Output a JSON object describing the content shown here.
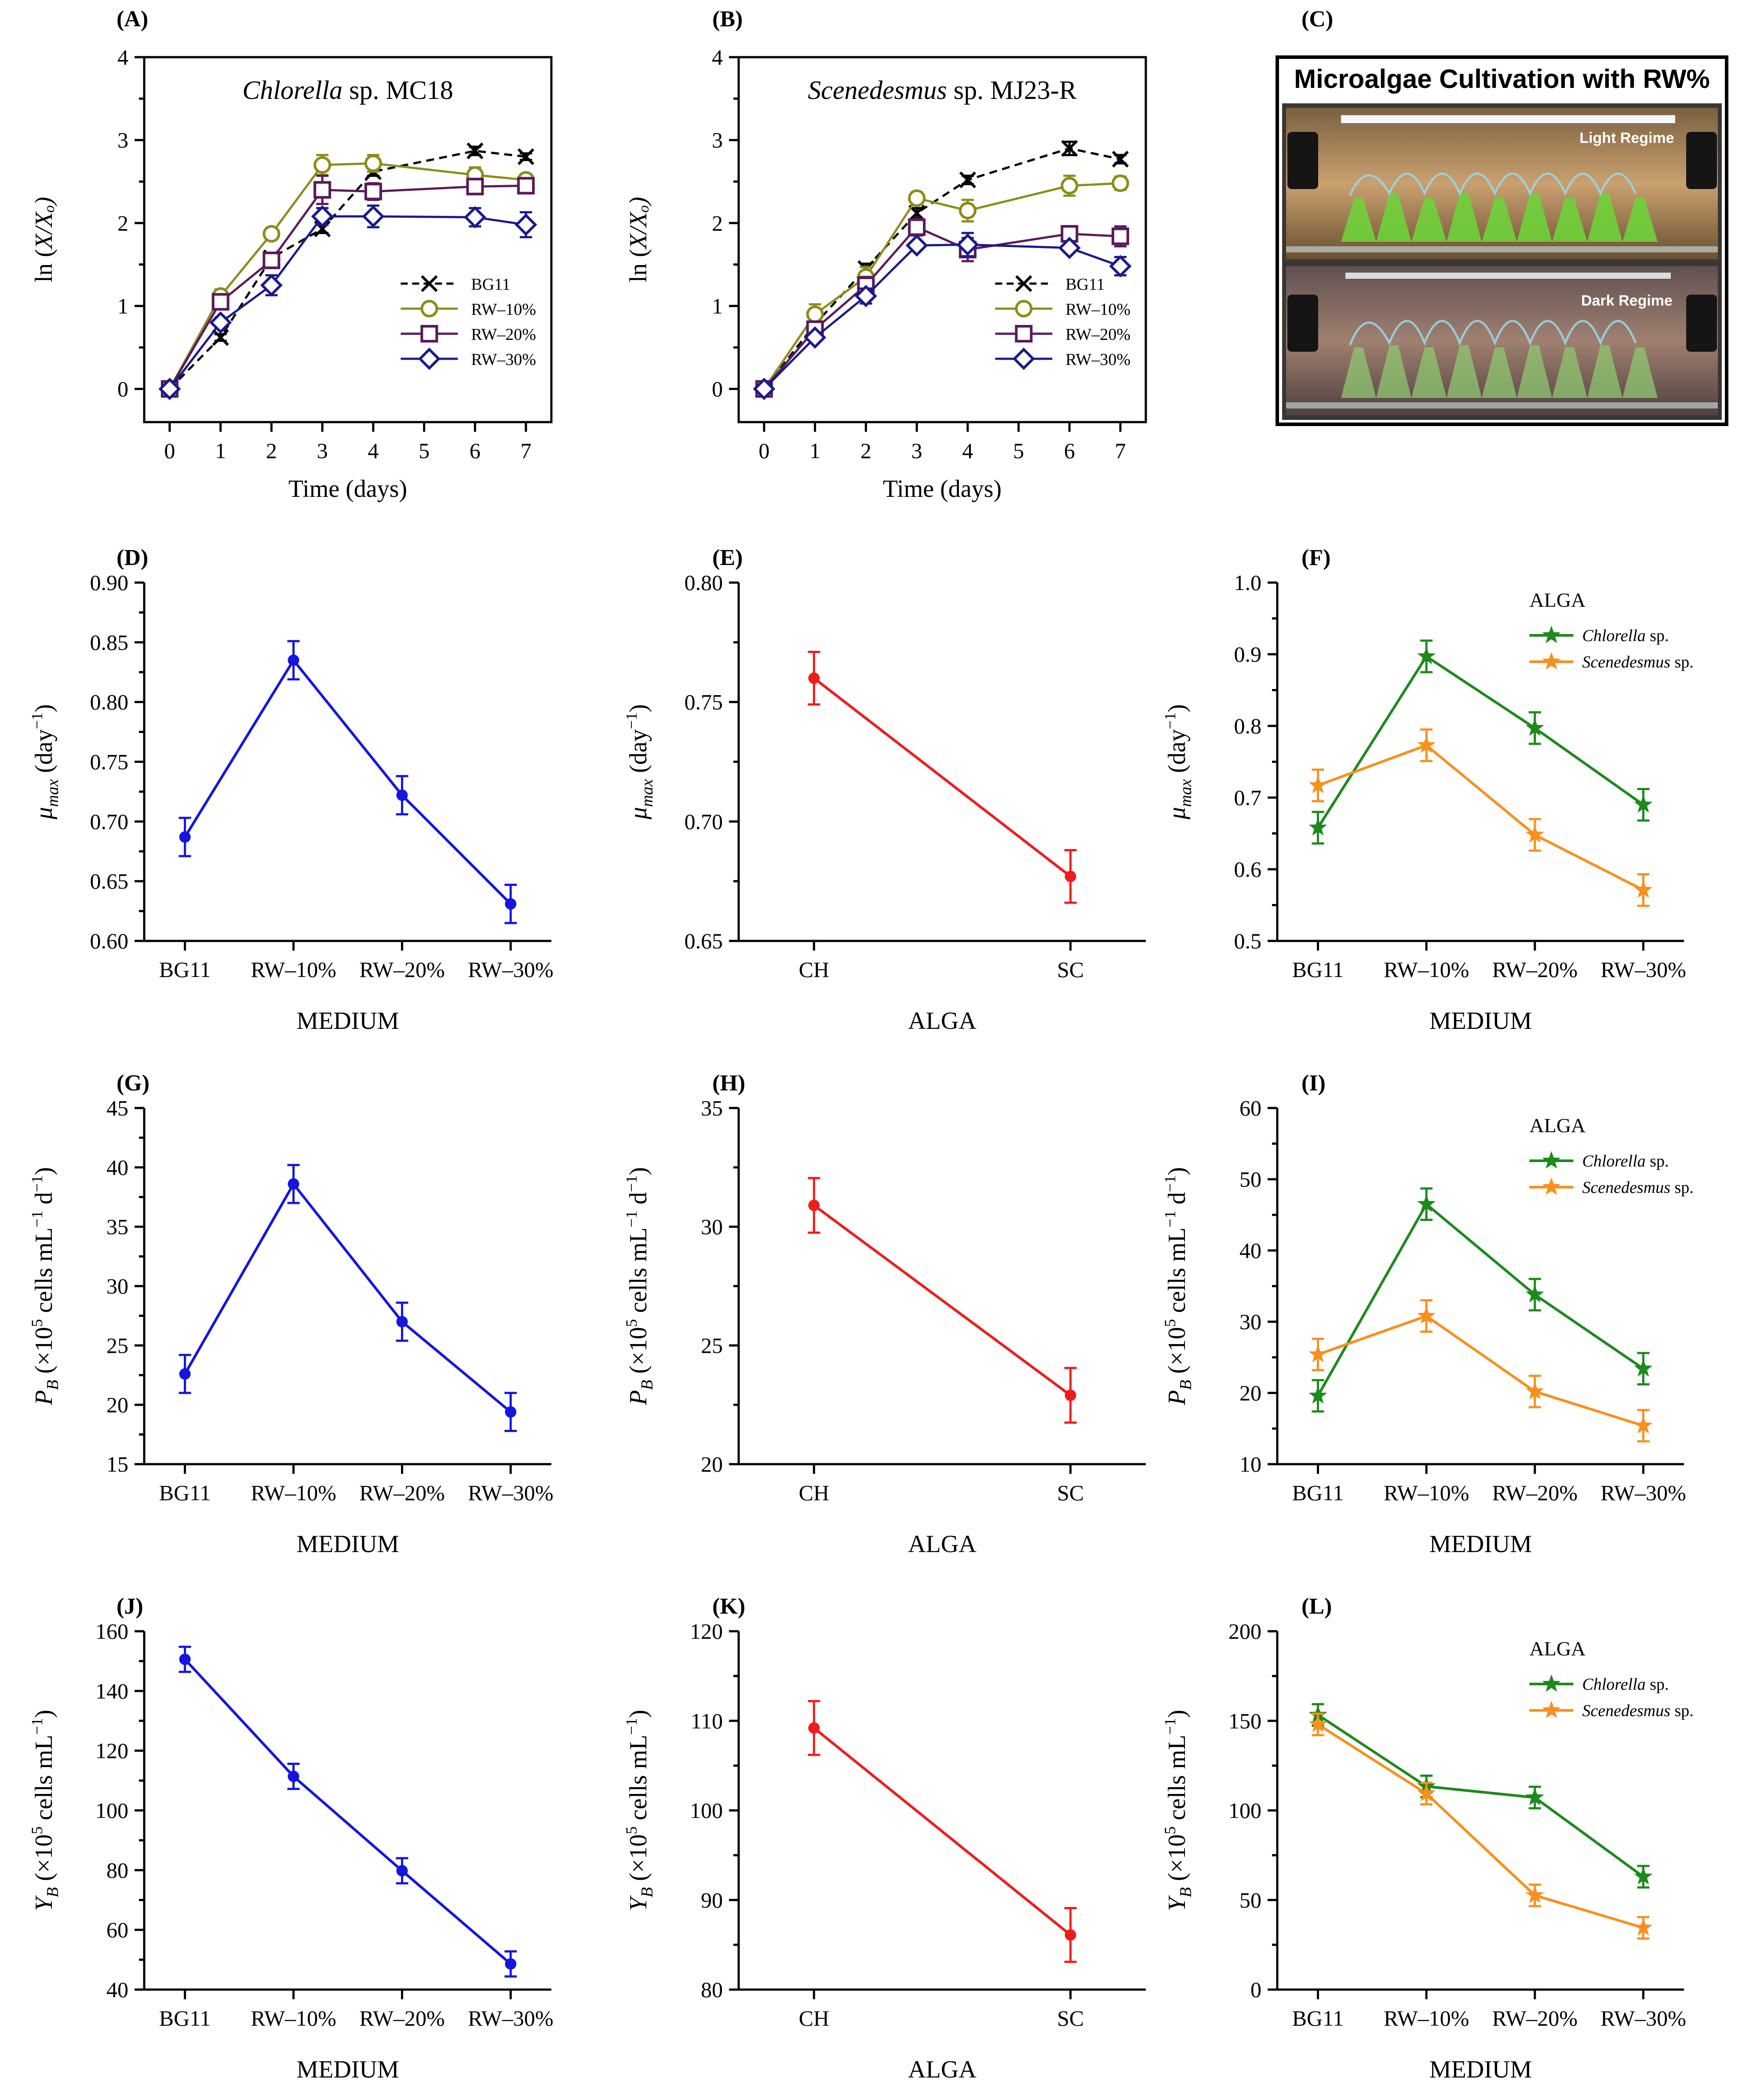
{
  "colors": {
    "blue": "#1515e0",
    "red": "#ee1c1c",
    "green": "#1c8a1c",
    "orange": "#f7901e",
    "olive": "#8c8c1a",
    "purple": "#5a1a5a",
    "navy": "#1a1a8c",
    "black": "#000000"
  },
  "panel_c": {
    "label": "(C)",
    "title": "Microalgae Cultivation with RW%",
    "light_label": "Light Regime",
    "dark_label": "Dark Regime"
  },
  "chart_data": [
    {
      "id": "A",
      "label": "(A)",
      "type": "line",
      "title": "Chlorella sp. MC18",
      "title_italic": "Chlorella",
      "title_rest": " sp. MC18",
      "xlabel": "Time (days)",
      "ylabel": "ln (X/Xₒ)",
      "x": [
        0,
        1,
        2,
        3,
        4,
        6,
        7
      ],
      "xticks": [
        "0",
        "1",
        "2",
        "3",
        "4",
        "5",
        "6",
        "7"
      ],
      "xlim": [
        -0.5,
        7.5
      ],
      "yticks": [
        "0",
        "1",
        "2",
        "3",
        "4"
      ],
      "ylim": [
        -0.4,
        4
      ],
      "legend": "bottom-right",
      "series": [
        {
          "name": "BG11",
          "values": [
            0,
            0.62,
            1.58,
            1.93,
            2.62,
            2.87,
            2.8
          ],
          "errors": [
            0,
            0.04,
            0.05,
            0.05,
            0.05,
            0.05,
            0.04
          ],
          "marker": "x",
          "dash": true,
          "color": "black"
        },
        {
          "name": "RW–10%",
          "values": [
            0,
            1.12,
            1.87,
            2.7,
            2.72,
            2.58,
            2.52
          ],
          "errors": [
            0,
            0.08,
            0.07,
            0.12,
            0.1,
            0.09,
            0.07
          ],
          "marker": "circle",
          "color": "olive"
        },
        {
          "name": "RW–20%",
          "values": [
            0,
            1.05,
            1.55,
            2.4,
            2.38,
            2.44,
            2.45
          ],
          "errors": [
            0,
            0.07,
            0.08,
            0.17,
            0.1,
            0.09,
            0.08
          ],
          "marker": "square",
          "color": "purple"
        },
        {
          "name": "RW–30%",
          "values": [
            0,
            0.8,
            1.25,
            2.08,
            2.08,
            2.07,
            1.98
          ],
          "errors": [
            0,
            0.06,
            0.12,
            0.1,
            0.13,
            0.11,
            0.15
          ],
          "marker": "diamond",
          "color": "navy"
        }
      ]
    },
    {
      "id": "B",
      "label": "(B)",
      "type": "line",
      "title": "Scenedesmus sp. MJ23-R",
      "title_italic": "Scenedesmus",
      "title_rest": " sp. MJ23-R",
      "xlabel": "Time (days)",
      "ylabel": "ln (X/Xₒ)",
      "x": [
        0,
        1,
        2,
        3,
        4,
        6,
        7
      ],
      "xticks": [
        "0",
        "1",
        "2",
        "3",
        "4",
        "5",
        "6",
        "7"
      ],
      "xlim": [
        -0.5,
        7.5
      ],
      "yticks": [
        "0",
        "1",
        "2",
        "3",
        "4"
      ],
      "ylim": [
        -0.4,
        4
      ],
      "legend": "bottom-right",
      "series": [
        {
          "name": "BG11",
          "values": [
            0,
            0.78,
            1.45,
            2.12,
            2.52,
            2.9,
            2.77
          ],
          "errors": [
            0,
            0.05,
            0.06,
            0.06,
            0.05,
            0.08,
            0.05
          ],
          "marker": "x",
          "dash": true,
          "color": "black"
        },
        {
          "name": "RW–10%",
          "values": [
            0,
            0.9,
            1.35,
            2.3,
            2.15,
            2.45,
            2.48
          ],
          "errors": [
            0,
            0.12,
            0.12,
            0.07,
            0.13,
            0.12,
            0.08
          ],
          "marker": "circle",
          "color": "olive"
        },
        {
          "name": "RW–20%",
          "values": [
            0,
            0.72,
            1.25,
            1.95,
            1.68,
            1.87,
            1.84
          ],
          "errors": [
            0,
            0.06,
            0.1,
            0.1,
            0.14,
            0.06,
            0.12
          ],
          "marker": "square",
          "color": "purple"
        },
        {
          "name": "RW–30%",
          "values": [
            0,
            0.62,
            1.12,
            1.73,
            1.74,
            1.7,
            1.48
          ],
          "errors": [
            0,
            0.05,
            0.09,
            0.05,
            0.14,
            0.05,
            0.11
          ],
          "marker": "diamond",
          "color": "navy"
        }
      ]
    },
    {
      "id": "D",
      "label": "(D)",
      "type": "line",
      "xlabel": "MEDIUM",
      "ylabel_html": [
        "μ",
        "max",
        " (day",
        "−1",
        ")"
      ],
      "categories": [
        "BG11",
        "RW–10%",
        "RW–20%",
        "RW–30%"
      ],
      "yticks": [
        "0.60",
        "0.65",
        "0.70",
        "0.75",
        "0.80",
        "0.85",
        "0.90"
      ],
      "ylim": [
        0.6,
        0.9
      ],
      "series": [
        {
          "name": "mean",
          "values": [
            0.687,
            0.835,
            0.722,
            0.631
          ],
          "errors": [
            0.016,
            0.016,
            0.016,
            0.016
          ],
          "marker": "dot",
          "color": "blue"
        }
      ]
    },
    {
      "id": "E",
      "label": "(E)",
      "type": "line",
      "xlabel": "ALGA",
      "ylabel_html": [
        "μ",
        "max",
        " (day",
        "−1",
        ")"
      ],
      "categories": [
        "CH",
        "SC"
      ],
      "yticks": [
        "0.65",
        "0.70",
        "0.75",
        "0.80"
      ],
      "ylim": [
        0.65,
        0.8
      ],
      "series": [
        {
          "name": "mean",
          "values": [
            0.76,
            0.677
          ],
          "errors": [
            0.011,
            0.011
          ],
          "marker": "dot",
          "color": "red"
        }
      ]
    },
    {
      "id": "F",
      "label": "(F)",
      "type": "line",
      "xlabel": "MEDIUM",
      "ylabel_html": [
        "μ",
        "max",
        " (day",
        "−1",
        ")"
      ],
      "categories": [
        "BG11",
        "RW–10%",
        "RW–20%",
        "RW–30%"
      ],
      "yticks": [
        "0.5",
        "0.6",
        "0.7",
        "0.8",
        "0.9",
        "1.0"
      ],
      "ylim": [
        0.5,
        1.0
      ],
      "legend_title": "ALGA",
      "legend": "top-right",
      "series": [
        {
          "name": "Chlorella sp.",
          "italic": "Chlorella",
          "rest": " sp.",
          "values": [
            0.658,
            0.897,
            0.797,
            0.69
          ],
          "errors": [
            0.022,
            0.022,
            0.022,
            0.022
          ],
          "marker": "star",
          "color": "green"
        },
        {
          "name": "Scenedesmus sp.",
          "italic": "Scenedesmus",
          "rest": " sp.",
          "values": [
            0.717,
            0.773,
            0.648,
            0.571
          ],
          "errors": [
            0.022,
            0.022,
            0.022,
            0.022
          ],
          "marker": "star",
          "color": "orange"
        }
      ]
    },
    {
      "id": "G",
      "label": "(G)",
      "type": "line",
      "xlabel": "MEDIUM",
      "ylabel_html": [
        "P",
        "B",
        " (×10",
        "5",
        " cells mL",
        "−1",
        " d",
        "−1",
        ")"
      ],
      "categories": [
        "BG11",
        "RW–10%",
        "RW–20%",
        "RW–30%"
      ],
      "yticks": [
        "15",
        "20",
        "25",
        "30",
        "35",
        "40",
        "45"
      ],
      "ylim": [
        15,
        45
      ],
      "series": [
        {
          "name": "mean",
          "values": [
            22.6,
            38.6,
            27.0,
            19.4
          ],
          "errors": [
            1.6,
            1.6,
            1.6,
            1.6
          ],
          "marker": "dot",
          "color": "blue"
        }
      ]
    },
    {
      "id": "H",
      "label": "(H)",
      "type": "line",
      "xlabel": "ALGA",
      "ylabel_html": [
        "P",
        "B",
        " (×10",
        "5",
        " cells mL",
        "−1",
        " d",
        "−1",
        ")"
      ],
      "categories": [
        "CH",
        "SC"
      ],
      "yticks": [
        "20",
        "25",
        "30",
        "35"
      ],
      "ylim": [
        20,
        35
      ],
      "series": [
        {
          "name": "mean",
          "values": [
            30.9,
            22.9
          ],
          "errors": [
            1.15,
            1.15
          ],
          "marker": "dot",
          "color": "red"
        }
      ]
    },
    {
      "id": "I",
      "label": "(I)",
      "type": "line",
      "xlabel": "MEDIUM",
      "ylabel_html": [
        "P",
        "B",
        " (×10",
        "5",
        " cells mL",
        "−1",
        " d",
        "−1",
        ")"
      ],
      "categories": [
        "BG11",
        "RW–10%",
        "RW–20%",
        "RW–30%"
      ],
      "yticks": [
        "10",
        "20",
        "30",
        "40",
        "50",
        "60"
      ],
      "ylim": [
        10,
        60
      ],
      "legend_title": "ALGA",
      "legend": "top-right",
      "series": [
        {
          "name": "Chlorella sp.",
          "italic": "Chlorella",
          "rest": " sp.",
          "values": [
            19.6,
            46.5,
            33.8,
            23.4
          ],
          "errors": [
            2.2,
            2.2,
            2.2,
            2.2
          ],
          "marker": "star",
          "color": "green"
        },
        {
          "name": "Scenedesmus sp.",
          "italic": "Scenedesmus",
          "rest": " sp.",
          "values": [
            25.4,
            30.8,
            20.2,
            15.4
          ],
          "errors": [
            2.2,
            2.2,
            2.2,
            2.2
          ],
          "marker": "star",
          "color": "orange"
        }
      ]
    },
    {
      "id": "J",
      "label": "(J)",
      "type": "line",
      "xlabel": "MEDIUM",
      "ylabel_html": [
        "Y",
        "B",
        " (×10",
        "5",
        " cells mL",
        "−1",
        ")"
      ],
      "categories": [
        "BG11",
        "RW–10%",
        "RW–20%",
        "RW–30%"
      ],
      "yticks": [
        "40",
        "60",
        "80",
        "100",
        "120",
        "140",
        "160"
      ],
      "ylim": [
        40,
        160
      ],
      "series": [
        {
          "name": "mean",
          "values": [
            150.6,
            111.4,
            79.8,
            48.6
          ],
          "errors": [
            4.2,
            4.2,
            4.2,
            4.2
          ],
          "marker": "dot",
          "color": "blue"
        }
      ]
    },
    {
      "id": "K",
      "label": "(K)",
      "type": "line",
      "xlabel": "ALGA",
      "ylabel_html": [
        "Y",
        "B",
        " (×10",
        "5",
        " cells mL",
        "−1",
        ")"
      ],
      "categories": [
        "CH",
        "SC"
      ],
      "yticks": [
        "80",
        "90",
        "100",
        "110",
        "120"
      ],
      "ylim": [
        80,
        120
      ],
      "series": [
        {
          "name": "mean",
          "values": [
            109.2,
            86.1
          ],
          "errors": [
            3.0,
            3.0
          ],
          "marker": "dot",
          "color": "red"
        }
      ]
    },
    {
      "id": "L",
      "label": "(L)",
      "type": "line",
      "xlabel": "MEDIUM",
      "ylabel_html": [
        "Y",
        "B",
        " (×10",
        "5",
        " cells mL",
        "−1",
        ")"
      ],
      "categories": [
        "BG11",
        "RW–10%",
        "RW–20%",
        "RW–30%"
      ],
      "yticks": [
        "0",
        "50",
        "100",
        "150",
        "200"
      ],
      "ylim": [
        0,
        200
      ],
      "legend_title": "ALGA",
      "legend": "top-right",
      "series": [
        {
          "name": "Chlorella sp.",
          "italic": "Chlorella",
          "rest": " sp.",
          "values": [
            153.3,
            113.4,
            107.2,
            63.0
          ],
          "errors": [
            6,
            6,
            6,
            6
          ],
          "marker": "star",
          "color": "green"
        },
        {
          "name": "Scenedesmus sp.",
          "italic": "Scenedesmus",
          "rest": " sp.",
          "values": [
            148.0,
            109.4,
            52.6,
            34.5
          ],
          "errors": [
            6,
            6,
            6,
            6
          ],
          "marker": "star",
          "color": "orange"
        }
      ]
    }
  ]
}
